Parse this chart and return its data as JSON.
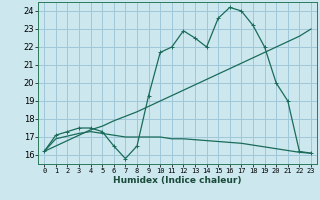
{
  "xlabel": "Humidex (Indice chaleur)",
  "bg_color": "#cce8ee",
  "grid_color": "#a0c8d8",
  "line_color": "#1a6b5a",
  "xlim": [
    -0.5,
    23.5
  ],
  "ylim": [
    15.5,
    24.5
  ],
  "xticks": [
    0,
    1,
    2,
    3,
    4,
    5,
    6,
    7,
    8,
    9,
    10,
    11,
    12,
    13,
    14,
    15,
    16,
    17,
    18,
    19,
    20,
    21,
    22,
    23
  ],
  "yticks": [
    16,
    17,
    18,
    19,
    20,
    21,
    22,
    23,
    24
  ],
  "line1_x": [
    0,
    1,
    2,
    3,
    4,
    5,
    6,
    7,
    8,
    9,
    10,
    11,
    12,
    13,
    14,
    15,
    16,
    17,
    18,
    19,
    20,
    21,
    22,
    23
  ],
  "line1_y": [
    16.2,
    17.1,
    17.3,
    17.5,
    17.5,
    17.3,
    16.5,
    15.8,
    16.5,
    19.3,
    21.7,
    22.0,
    22.9,
    22.5,
    22.0,
    23.6,
    24.2,
    24.0,
    23.2,
    22.0,
    20.0,
    19.0,
    16.2,
    16.1
  ],
  "line2_x": [
    0,
    1,
    2,
    3,
    4,
    5,
    6,
    7,
    8,
    9,
    10,
    11,
    12,
    13,
    14,
    15,
    16,
    17,
    18,
    19,
    20,
    21,
    22,
    23
  ],
  "line2_y": [
    16.2,
    16.5,
    16.8,
    17.1,
    17.4,
    17.6,
    17.9,
    18.15,
    18.4,
    18.7,
    19.0,
    19.3,
    19.6,
    19.9,
    20.2,
    20.5,
    20.8,
    21.1,
    21.4,
    21.7,
    22.0,
    22.3,
    22.6,
    23.0
  ],
  "line3_x": [
    0,
    1,
    2,
    3,
    4,
    5,
    6,
    7,
    8,
    9,
    10,
    11,
    12,
    13,
    14,
    15,
    16,
    17,
    18,
    19,
    20,
    21,
    22,
    23
  ],
  "line3_y": [
    16.2,
    16.9,
    17.05,
    17.2,
    17.3,
    17.2,
    17.1,
    17.0,
    17.0,
    17.0,
    17.0,
    16.9,
    16.9,
    16.85,
    16.8,
    16.75,
    16.7,
    16.65,
    16.55,
    16.45,
    16.35,
    16.25,
    16.15,
    16.1
  ],
  "marker": "+"
}
